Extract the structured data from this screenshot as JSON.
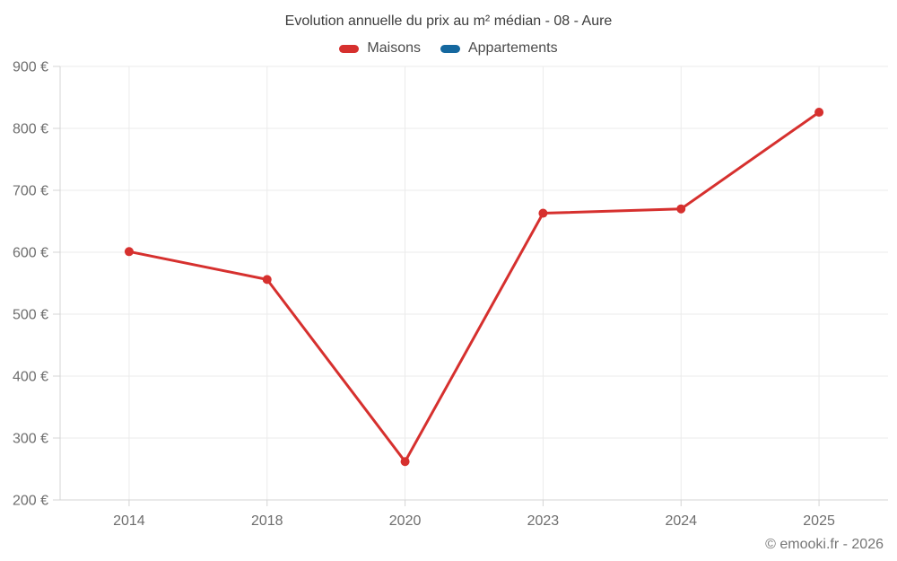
{
  "chart_data": {
    "type": "line",
    "title": "Evolution annuelle du prix au m² médian - 08 - Aure",
    "categories": [
      "2014",
      "2018",
      "2020",
      "2023",
      "2024",
      "2025"
    ],
    "series": [
      {
        "name": "Maisons",
        "color": "#d6302e",
        "values": [
          601,
          556,
          262,
          663,
          670,
          826
        ]
      },
      {
        "name": "Appartements",
        "color": "#15689f",
        "values": [
          null,
          null,
          null,
          null,
          null,
          null
        ]
      }
    ],
    "ylim": [
      200,
      900
    ],
    "ytick_step": 100,
    "ytick_suffix": " €",
    "xlabel": "",
    "ylabel": "",
    "grid": true,
    "legend_position": "top"
  },
  "styles": {
    "grid_color": "#ebebeb",
    "axis_color": "#d4d4d4",
    "tick_label_color": "#6e6e6e"
  },
  "footer": {
    "copyright": "© emooki.fr - 2026"
  }
}
